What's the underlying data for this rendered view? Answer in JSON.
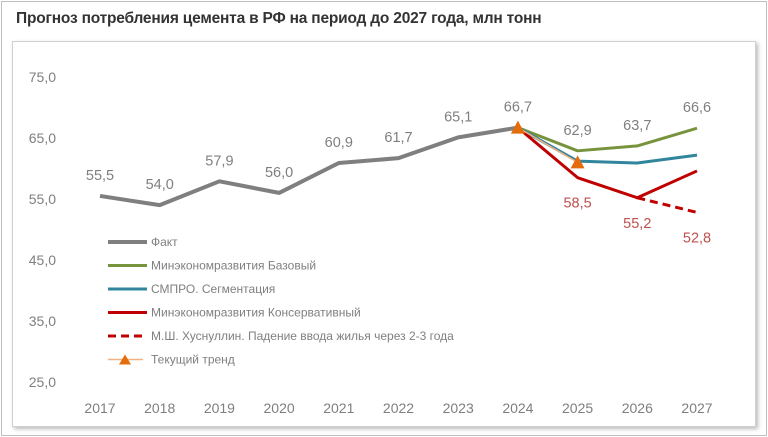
{
  "chart_data": {
    "type": "line",
    "title": "Прогноз потребления цемента в РФ на период до 2027 года, млн тонн",
    "x": [
      "2017",
      "2018",
      "2019",
      "2020",
      "2021",
      "2022",
      "2023",
      "2024",
      "2025",
      "2026",
      "2027"
    ],
    "ylim": [
      25,
      75
    ],
    "yticks": [
      "25,0",
      "35,0",
      "45,0",
      "55,0",
      "65,0",
      "75,0"
    ],
    "grid": false,
    "legend_position": "bottom-left",
    "series": [
      {
        "name": "Факт",
        "color": "#7f7f7f",
        "style": "solid",
        "x": [
          "2017",
          "2018",
          "2019",
          "2020",
          "2021",
          "2022",
          "2023",
          "2024"
        ],
        "values": [
          55.5,
          54.0,
          57.9,
          56.0,
          60.9,
          61.7,
          65.1,
          66.7
        ],
        "labels": [
          "55,5",
          "54,0",
          "57,9",
          "56,0",
          "60,9",
          "61,7",
          "65,1",
          "66,7"
        ]
      },
      {
        "name": "Минэкономразвития Базовый",
        "color": "#77933c",
        "style": "solid",
        "x": [
          "2024",
          "2025",
          "2026",
          "2027"
        ],
        "values": [
          66.7,
          62.9,
          63.7,
          66.6
        ],
        "labels": [
          "",
          "62,9",
          "63,7",
          "66,6"
        ]
      },
      {
        "name": "СМПРО. Сегментация",
        "color": "#31859c",
        "style": "solid",
        "x": [
          "2024",
          "2025",
          "2026",
          "2027"
        ],
        "values": [
          66.7,
          61.2,
          60.9,
          62.2
        ],
        "labels": [
          "",
          "",
          "",
          ""
        ]
      },
      {
        "name": "Минэкономразвития Консервативный",
        "color": "#c00000",
        "style": "solid",
        "x": [
          "2024",
          "2025",
          "2026",
          "2027"
        ],
        "values": [
          66.7,
          58.5,
          55.2,
          59.6
        ],
        "labels": [
          "",
          "58,5",
          "55,2",
          ""
        ]
      },
      {
        "name": "М.Ш. Хуснуллин. Падение ввода жилья через 2-3 года",
        "color": "#c00000",
        "style": "dashed",
        "x": [
          "2026",
          "2027"
        ],
        "values": [
          55.2,
          52.8
        ],
        "labels": [
          "",
          "52,8"
        ]
      },
      {
        "name": "Текущий тренд",
        "color": "#e46c0a",
        "style": "triangle",
        "x": [
          "2024",
          "2025"
        ],
        "values": [
          66.7,
          61.0
        ],
        "labels": [
          "",
          ""
        ]
      }
    ]
  }
}
